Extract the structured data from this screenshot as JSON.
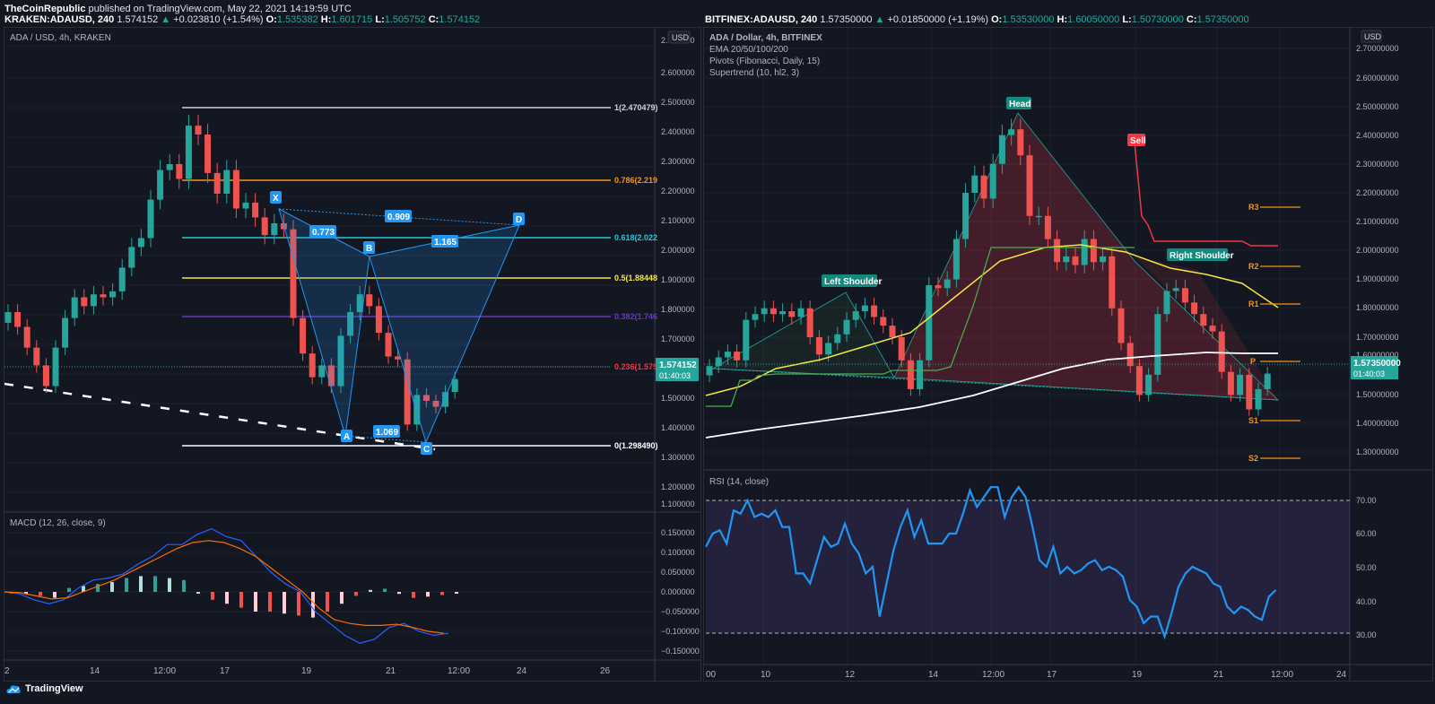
{
  "header": {
    "publisher_line": "TheCoinRepublic published on TradingView.com, May 22, 2021 14:19:59 UTC",
    "publisher": "TheCoinRepublic",
    "published_rest": " published on TradingView.com, May 22, 2021 14:19:59 UTC"
  },
  "left_chart": {
    "symbol_line": {
      "symbol": "KRAKEN:ADAUSD, 240",
      "last": "1.574152",
      "change": "+0.023810 (+1.54%)",
      "o_label": "O:",
      "o": "1.535382",
      "h_label": "H:",
      "h": "1.601715",
      "l_label": "L:",
      "l": "1.505752",
      "c_label": "C:",
      "c": "1.574152"
    },
    "title": "ADA / USD, 4h, KRAKEN",
    "currency": "USD",
    "price_axis": [
      "2.700000",
      "2.600000",
      "2.500000",
      "2.400000",
      "2.300000",
      "2.200000",
      "2.100000",
      "2.000000",
      "1.900000",
      "1.800000",
      "1.700000",
      "1.600000",
      "1.500000",
      "1.400000",
      "1.300000",
      "1.200000",
      "1.100000"
    ],
    "last_price_tag": "1.574152",
    "countdown": "01:40:03",
    "fib_levels": [
      {
        "label": "1(2.470479)",
        "color": "#d1d4dc",
        "price": 2.470479
      },
      {
        "label": "0.786(2.219",
        "color": "#f7931a",
        "price": 2.2196
      },
      {
        "label": "0.618(2.022",
        "color": "#26c6da",
        "price": 2.0227
      },
      {
        "label": "0.5(1.88448",
        "color": "#f5e642",
        "price": 1.88448
      },
      {
        "label": "0.382(1.746",
        "color": "#673ab7",
        "price": 1.7461
      },
      {
        "label": "0.236(1.575",
        "color": "#f23645",
        "price": 1.5755
      },
      {
        "label": "0(1.298490)",
        "color": "#ffffff",
        "price": 1.29849
      }
    ],
    "harmonic": {
      "points": [
        "X",
        "A",
        "B",
        "C",
        "D"
      ],
      "ratios": [
        "0.773",
        "0.909",
        "1.165",
        "1.069"
      ]
    },
    "macd": {
      "title": "MACD (12, 26, close, 9)",
      "axis": [
        "0.150000",
        "0.100000",
        "0.050000",
        "0.000000",
        "−0.050000",
        "−0.100000",
        "−0.150000"
      ]
    },
    "time_axis": [
      "2",
      "14",
      "12:00",
      "17",
      "19",
      "21",
      "12:00",
      "24",
      "26"
    ]
  },
  "right_chart": {
    "symbol_line": {
      "symbol": "BITFINEX:ADAUSD, 240",
      "last": "1.57350000",
      "change": "+0.01850000 (+1.19%)",
      "o_label": "O:",
      "o": "1.53530000",
      "h_label": "H:",
      "h": "1.60050000",
      "l_label": "L:",
      "l": "1.50730000",
      "c_label": "C:",
      "c": "1.57350000"
    },
    "title": "ADA / Dollar, 4h, BITFINEX",
    "indicators": [
      "EMA 20/50/100/200",
      "Pivots (Fibonacci, Daily, 15)",
      "Supertrend (10, hl2, 3)"
    ],
    "currency": "USD",
    "price_axis": [
      "2.70000000",
      "2.60000000",
      "2.50000000",
      "2.40000000",
      "2.30000000",
      "2.20000000",
      "2.10000000",
      "2.00000000",
      "1.90000000",
      "1.80000000",
      "1.70000000",
      "1.60000000",
      "1.50000000",
      "1.40000000",
      "1.30000000"
    ],
    "last_price_tag": "1.57350000",
    "countdown": "01:40:03",
    "annotations": [
      "Head",
      "Left Shoulder",
      "Right Shoulder",
      "Sell"
    ],
    "pivots": [
      {
        "label": "R3",
        "price": 2.13
      },
      {
        "label": "R2",
        "price": 1.92
      },
      {
        "label": "R1",
        "price": 1.79
      },
      {
        "label": "P",
        "price": 1.58
      },
      {
        "label": "S1",
        "price": 1.37
      },
      {
        "label": "S2",
        "price": 1.25
      }
    ],
    "rsi": {
      "title": "RSI (14, close)",
      "axis": [
        "70.00",
        "60.00",
        "50.00",
        "40.00",
        "30.00"
      ]
    },
    "time_axis": [
      "00",
      "10",
      "12",
      "14",
      "12:00",
      "17",
      "19",
      "21",
      "12:00",
      "24"
    ]
  },
  "footer": {
    "brand": "TradingView"
  },
  "colors": {
    "bg": "#131722",
    "grid": "#1e222d",
    "up": "#26a69a",
    "down": "#ef5350",
    "macd": "#2962ff",
    "signal": "#ff6d00",
    "rsi": "#2196f3",
    "harmonic": "#2196f3",
    "ema_yellow": "#f5e642",
    "ema_white": "#ffffff",
    "supertrend_green": "#4caf50",
    "supertrend_red": "#f23645"
  },
  "chart_data": [
    {
      "type": "candlestick",
      "title": "ADA / USD, 4h, KRAKEN",
      "ylabel": "USD",
      "ylim": [
        1.05,
        2.75
      ],
      "x_ticks": [
        "14",
        "12:00",
        "17",
        "19",
        "21",
        "12:00",
        "24",
        "26"
      ],
      "last": 1.574152,
      "ohlc_last": {
        "open": 1.535382,
        "high": 1.601715,
        "low": 1.505752,
        "close": 1.574152
      },
      "fib_retracement": [
        {
          "level": 1,
          "price": 2.470479
        },
        {
          "level": 0.786,
          "price": 2.2196
        },
        {
          "level": 0.618,
          "price": 2.0227
        },
        {
          "level": 0.5,
          "price": 1.88448
        },
        {
          "level": 0.382,
          "price": 1.7461
        },
        {
          "level": 0.236,
          "price": 1.5755
        },
        {
          "level": 0,
          "price": 1.29849
        }
      ],
      "harmonic_pattern": {
        "X": 2.12,
        "A": 1.36,
        "B": 1.96,
        "C": 1.32,
        "D": 2.06,
        "ratios": {
          "XB": 0.773,
          "XD": 0.909,
          "BD": 1.165,
          "AC": 1.069
        }
      },
      "close_series": [
        1.8,
        1.75,
        1.68,
        1.62,
        1.55,
        1.68,
        1.78,
        1.85,
        1.82,
        1.86,
        1.85,
        1.87,
        1.95,
        2.02,
        2.05,
        2.18,
        2.28,
        2.3,
        2.25,
        2.43,
        2.4,
        2.27,
        2.2,
        2.28,
        2.15,
        2.17,
        2.12,
        2.06,
        2.1,
        2.08,
        1.78,
        1.66,
        1.58,
        1.62,
        1.55,
        1.72,
        1.8,
        1.86,
        1.82,
        1.73,
        1.65,
        1.64,
        1.42,
        1.52,
        1.5,
        1.48,
        1.53,
        1.574
      ]
    },
    {
      "type": "line",
      "title": "MACD (12, 26, close, 9)",
      "ylim": [
        -0.15,
        0.17
      ],
      "series": [
        {
          "name": "MACD",
          "values": [
            0.0,
            -0.005,
            -0.02,
            -0.03,
            -0.02,
            0.01,
            0.03,
            0.035,
            0.045,
            0.07,
            0.09,
            0.12,
            0.12,
            0.145,
            0.16,
            0.14,
            0.13,
            0.09,
            0.05,
            0.02,
            0.0,
            -0.05,
            -0.08,
            -0.11,
            -0.13,
            -0.12,
            -0.09,
            -0.08,
            -0.1,
            -0.11,
            -0.105
          ]
        },
        {
          "name": "Signal",
          "values": [
            0.0,
            -0.002,
            -0.01,
            -0.018,
            -0.015,
            0.0,
            0.015,
            0.03,
            0.05,
            0.07,
            0.09,
            0.11,
            0.125,
            0.13,
            0.125,
            0.11,
            0.09,
            0.06,
            0.03,
            0.0,
            -0.04,
            -0.07,
            -0.08,
            -0.085,
            -0.085,
            -0.082,
            -0.09,
            -0.1,
            -0.105
          ]
        },
        {
          "name": "Histogram",
          "values": [
            0.0,
            -0.003,
            -0.01,
            -0.015,
            0.01,
            0.015,
            0.02,
            0.025,
            0.035,
            0.04,
            0.04,
            0.035,
            0.03,
            0.0,
            -0.02,
            -0.03,
            -0.04,
            -0.05,
            -0.05,
            -0.055,
            -0.06,
            -0.065,
            -0.05,
            -0.03,
            -0.01,
            0.005,
            0.008,
            -0.005,
            -0.015,
            -0.012,
            -0.008,
            -0.004
          ]
        }
      ]
    },
    {
      "type": "candlestick",
      "title": "ADA / Dollar, 4h, BITFINEX",
      "ylabel": "USD",
      "ylim": [
        1.2,
        2.75
      ],
      "x_ticks": [
        "00",
        "10",
        "12",
        "14",
        "12:00",
        "17",
        "19",
        "21",
        "12:00",
        "24"
      ],
      "last": 1.5735,
      "ohlc_last": {
        "open": 1.5353,
        "high": 1.6005,
        "low": 1.5073,
        "close": 1.5735
      },
      "pattern": "Head and Shoulders",
      "pivots": {
        "R3": 2.13,
        "R2": 1.92,
        "R1": 1.79,
        "P": 1.58,
        "S1": 1.37,
        "S2": 1.25
      },
      "ema_50_end": 1.78,
      "ema_200_end": 1.61,
      "supertrend_sell": 2.36,
      "close_series": [
        1.6,
        1.63,
        1.65,
        1.62,
        1.76,
        1.78,
        1.8,
        1.78,
        1.79,
        1.77,
        1.8,
        1.7,
        1.64,
        1.68,
        1.71,
        1.76,
        1.79,
        1.81,
        1.77,
        1.74,
        1.7,
        1.62,
        1.52,
        1.62,
        1.88,
        1.87,
        1.9,
        2.04,
        2.2,
        2.26,
        2.18,
        2.3,
        2.4,
        2.42,
        2.33,
        2.12,
        2.12,
        2.04,
        1.96,
        1.98,
        1.95,
        2.04,
        1.96,
        1.98,
        1.8,
        1.68,
        1.6,
        1.5,
        1.57,
        1.78,
        1.86,
        1.87,
        1.82,
        1.78,
        1.74,
        1.72,
        1.58,
        1.5,
        1.57,
        1.45,
        1.52,
        1.574
      ]
    },
    {
      "type": "line",
      "title": "RSI (14, close)",
      "ylim": [
        28,
        75
      ],
      "bands": [
        30,
        70
      ],
      "series": [
        {
          "name": "RSI",
          "values": [
            56,
            60,
            61,
            57,
            67,
            66,
            70,
            65,
            66,
            65,
            67,
            62,
            62,
            48,
            48,
            45,
            52,
            59,
            56,
            57,
            63,
            57,
            54,
            48,
            50,
            35,
            45,
            55,
            62,
            67,
            59,
            64,
            57,
            57,
            57,
            60,
            60,
            66,
            73,
            68,
            71,
            74,
            74,
            65,
            71,
            74,
            71,
            62,
            52,
            50,
            56,
            48,
            50,
            48,
            49,
            51,
            52,
            49,
            50,
            49,
            47,
            40,
            38,
            33,
            35,
            35,
            29,
            36,
            44,
            48,
            50,
            49,
            48,
            45,
            44,
            38,
            36,
            38,
            37,
            35,
            34,
            41,
            43
          ]
        }
      ]
    }
  ]
}
